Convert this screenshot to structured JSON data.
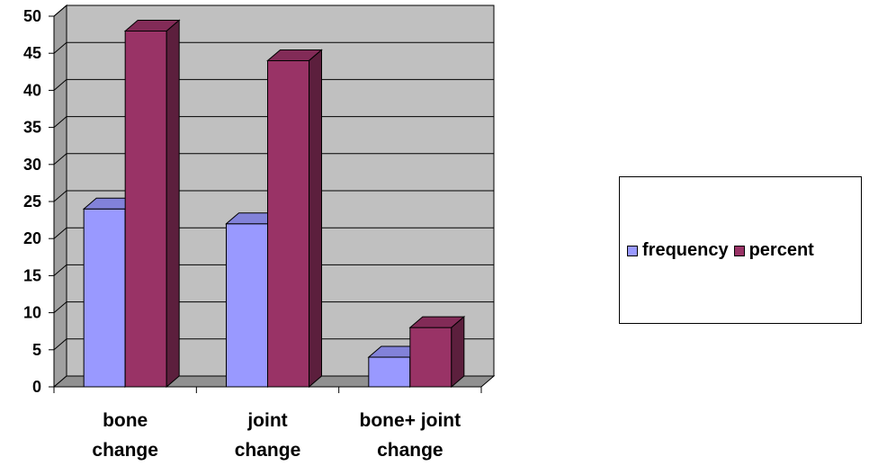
{
  "chart_data": {
    "type": "bar",
    "categories": [
      [
        "bone",
        "change"
      ],
      [
        "joint",
        "change"
      ],
      [
        "bone+ joint",
        "change"
      ]
    ],
    "series": [
      {
        "name": "frequency",
        "values": [
          24,
          22,
          4
        ],
        "color": "#9999ff"
      },
      {
        "name": "percent",
        "values": [
          48,
          44,
          8
        ],
        "color": "#993366"
      }
    ],
    "ylim": [
      0,
      50
    ],
    "yticks": [
      0,
      5,
      10,
      15,
      20,
      25,
      30,
      35,
      40,
      45,
      50
    ],
    "grid": true,
    "legend_position": "right",
    "plot_background": "#c0c0c0"
  }
}
